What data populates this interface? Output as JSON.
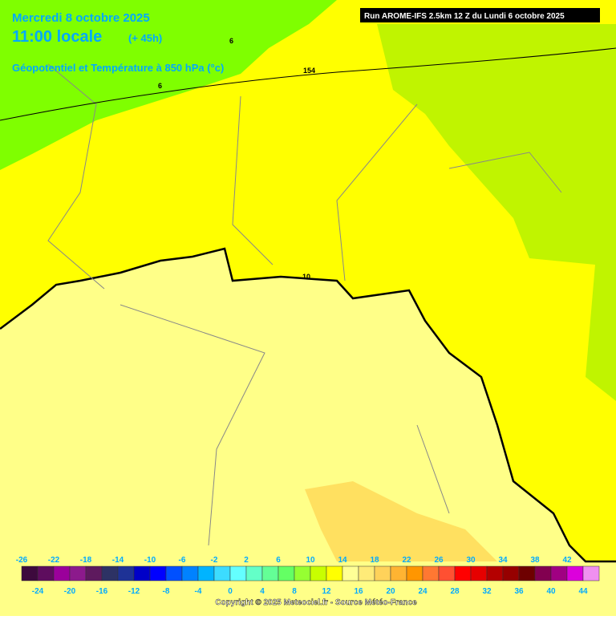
{
  "header": {
    "date": "Mercredi 8 octobre 2025",
    "time": "11:00 locale",
    "lead": "(+ 45h)",
    "field": "Géopotentiel et Température à 850 hPa (°c)",
    "run": "Run AROME-IFS 2.5km 12 Z du Lundi 6 octobre 2025"
  },
  "contour_labels": [
    "6",
    "154",
    "6",
    "10"
  ],
  "legend": {
    "ticks": [
      -26,
      -24,
      -22,
      -20,
      -18,
      -16,
      -14,
      -12,
      -10,
      -8,
      -6,
      -4,
      -2,
      0,
      2,
      4,
      6,
      8,
      10,
      12,
      14,
      16,
      18,
      20,
      22,
      24,
      26,
      28,
      30,
      32,
      34,
      36,
      38,
      40,
      42,
      44
    ],
    "colors": [
      "#3d0a3d",
      "#5e0d5e",
      "#9b009b",
      "#8c1a8c",
      "#5e1a5e",
      "#2d3264",
      "#1e3296",
      "#0000c8",
      "#0000ff",
      "#0050ff",
      "#0082ff",
      "#00b4ff",
      "#3cdcff",
      "#64ffff",
      "#64ffc8",
      "#64ff96",
      "#64ff64",
      "#96ff32",
      "#c8ff00",
      "#ffff00",
      "#ffff96",
      "#ffeb78",
      "#ffd25a",
      "#ffb432",
      "#ff9600",
      "#ff7832",
      "#ff5032",
      "#ff0000",
      "#e60000",
      "#b40000",
      "#960000",
      "#6e0000",
      "#820050",
      "#a00082",
      "#dc00dc",
      "#f090f0"
    ]
  },
  "copyright": "Copyright © 2025 Meteociel.fr - Source Météo-France"
}
